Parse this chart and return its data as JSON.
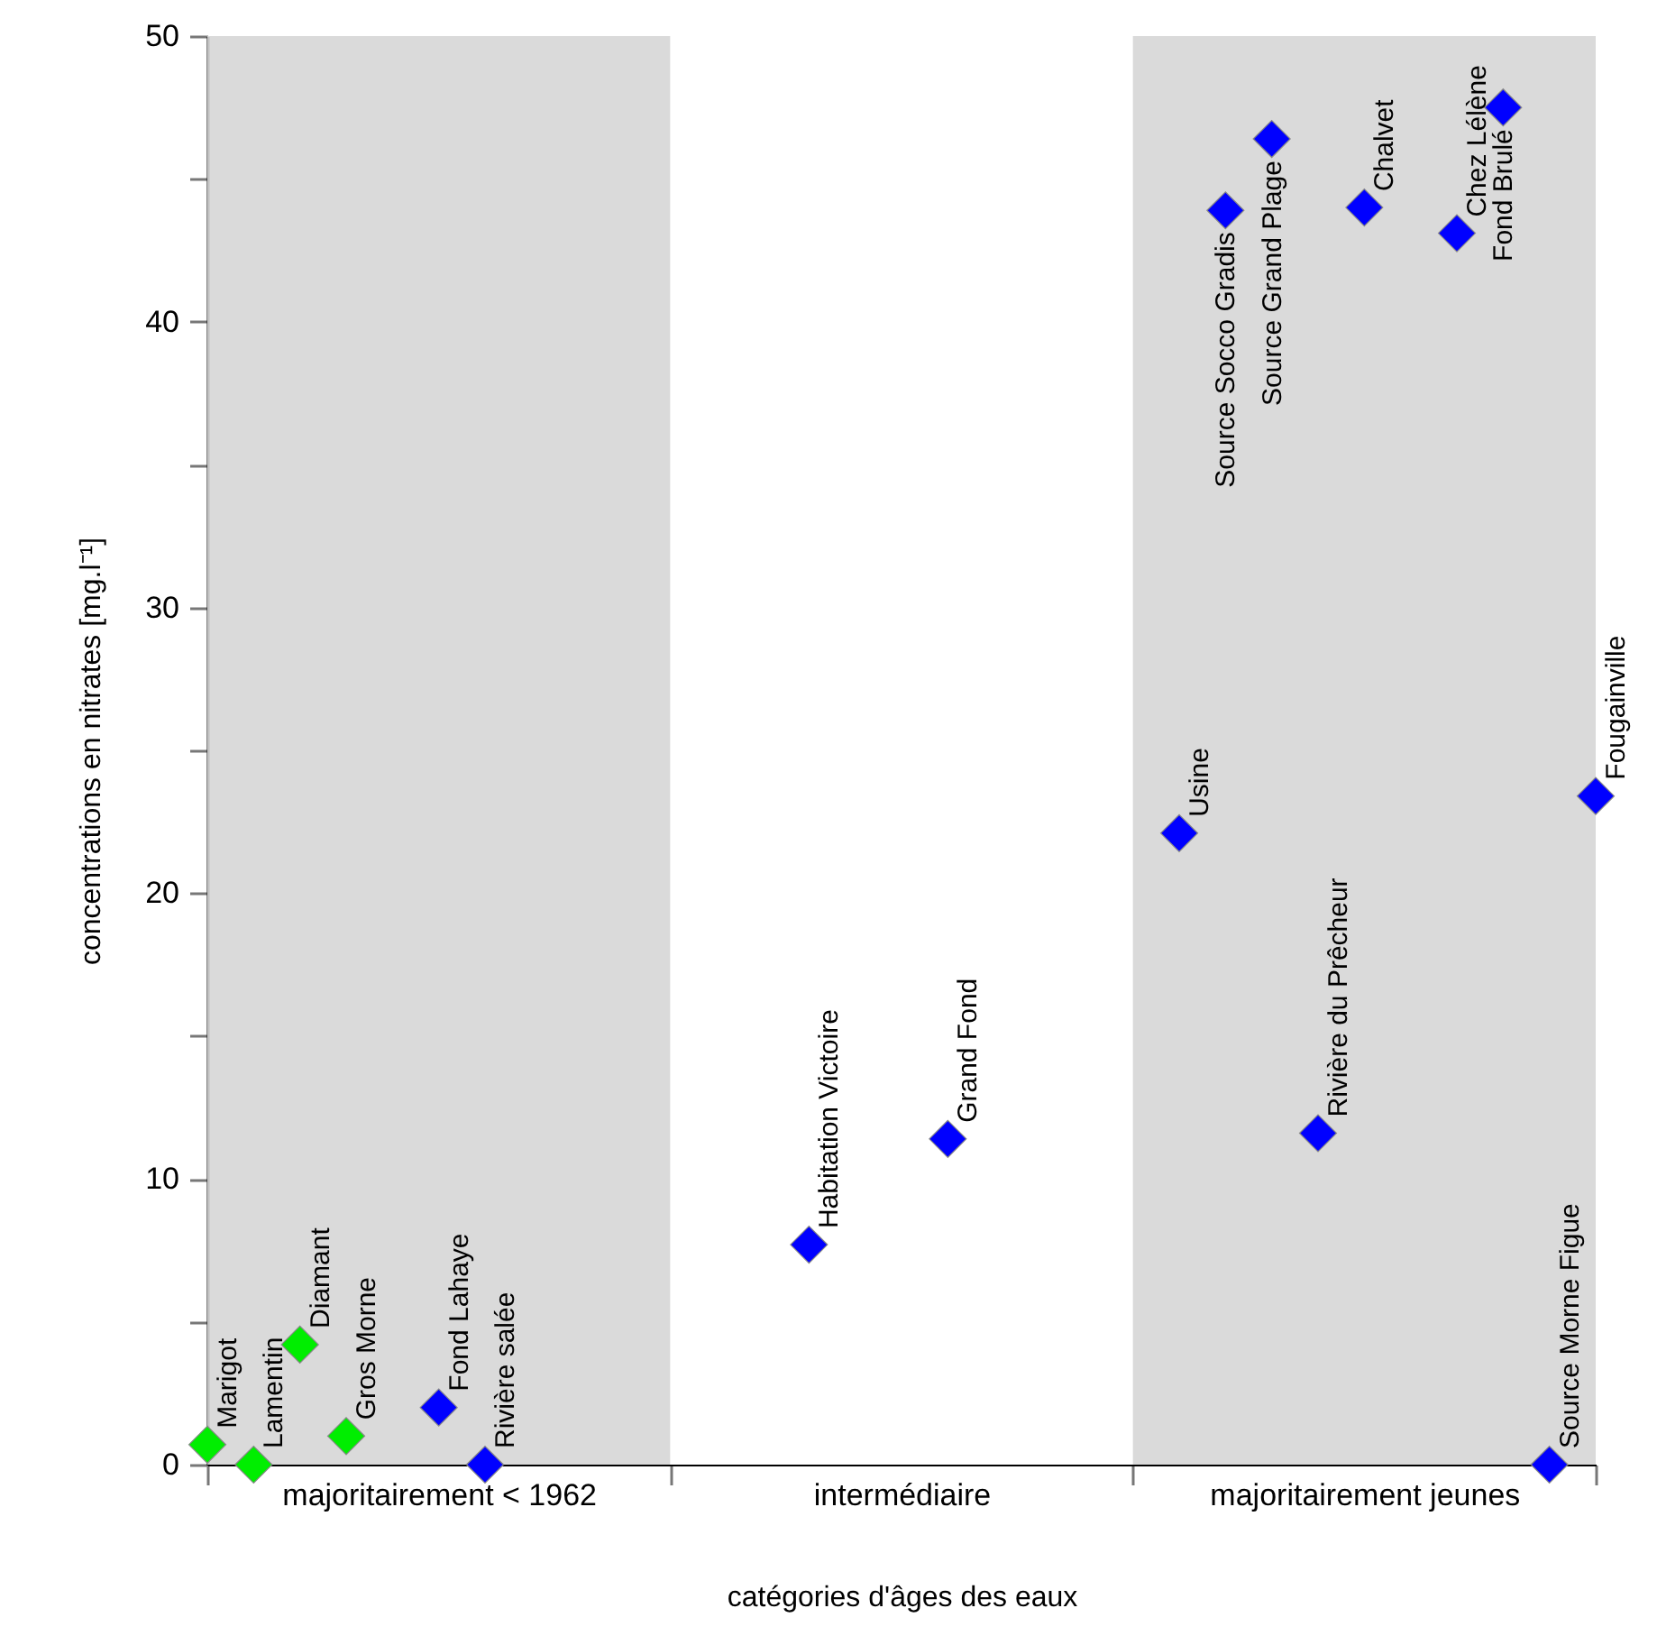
{
  "chart_data": {
    "type": "scatter",
    "xlabel": "catégories d'âges des eaux",
    "ylabel": "concentrations en nitrates [mg.l⁻¹]",
    "marker": "diamond",
    "categories": [
      null,
      null,
      null,
      null,
      null,
      "majoritairement < 1962",
      null,
      null,
      null,
      null,
      null,
      null,
      null,
      null,
      null,
      "intermédiaire",
      null,
      null,
      null,
      null,
      null,
      null,
      null,
      null,
      null,
      "majoritairement jeunes",
      null,
      null,
      null,
      null,
      null
    ],
    "ylim": [
      0,
      50
    ],
    "yticks": [
      0,
      {
        "value": 5,
        "label": null
      },
      10,
      {
        "value": 15,
        "label": null
      },
      20,
      {
        "value": 25,
        "label": null
      },
      30,
      {
        "value": 35,
        "label": null
      },
      40,
      {
        "value": 45,
        "label": null
      },
      50
    ],
    "series": [
      {
        "color": "#00ee00",
        "values": [
          0.7,
          0,
          4.2,
          1.0,
          null,
          null,
          null,
          null,
          null,
          null,
          null,
          null,
          null,
          null,
          null,
          null,
          null,
          null,
          null,
          null,
          null,
          null,
          null,
          null,
          null,
          null,
          null,
          null,
          null,
          null,
          null
        ]
      },
      {
        "color": "#0000ff",
        "values": [
          null,
          null,
          null,
          null,
          null,
          2.0,
          0,
          null,
          null,
          null,
          null,
          null,
          null,
          7.7,
          null,
          null,
          11.4,
          null,
          null,
          null,
          null,
          22.1,
          43.9,
          46.4,
          11.6,
          44.0,
          null,
          43.1,
          47.5,
          0,
          23.4
        ]
      }
    ],
    "annotations": [
      "Marigot",
      "Lamentin",
      "Diamant",
      "Gros Morne",
      "Fond Lahaye",
      "Rivière salée",
      "Habitation Victoire",
      "Grand Fond",
      "Usine",
      "Source Socco Gradis",
      "Source Grand Plage",
      "Rivière du Prêcheur",
      "Chalvet",
      "Chez Lélène",
      "Fond Brulé",
      "Source Morne Figue",
      "Fougainville"
    ]
  }
}
